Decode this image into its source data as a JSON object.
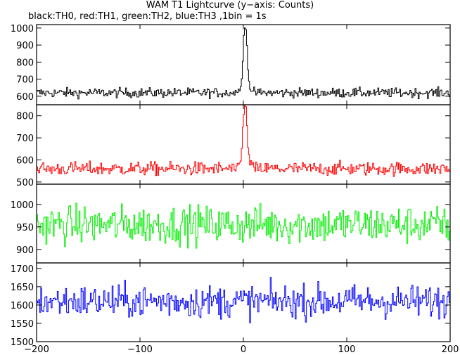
{
  "chart_data": {
    "type": "line",
    "title": "WAM T1 Lightcurve (y−axis: Counts)",
    "subtitle": "black:TH0, red:TH1, green:TH2, blue:TH3 ,1bin = 1s",
    "x_ticks": [
      -200,
      -100,
      0,
      100,
      200
    ],
    "xlim": [
      -200,
      200
    ],
    "x": {
      "start": -200,
      "end": 200,
      "step": 1
    },
    "panels": [
      {
        "color": "#000000",
        "ylim": [
          550,
          1020
        ],
        "yticks": [
          600,
          700,
          800,
          900,
          1000
        ],
        "baseline": 620,
        "noise": 20,
        "peak": [
          [
            -6,
            630
          ],
          [
            -4,
            640
          ],
          [
            -3,
            660
          ],
          [
            -2,
            700
          ],
          [
            -1,
            800
          ],
          [
            0,
            960
          ],
          [
            1,
            1015
          ],
          [
            2,
            990
          ],
          [
            3,
            900
          ],
          [
            4,
            760
          ],
          [
            5,
            680
          ],
          [
            6,
            650
          ],
          [
            8,
            635
          ]
        ]
      },
      {
        "color": "#ff0000",
        "ylim": [
          490,
          850
        ],
        "yticks": [
          500,
          600,
          700,
          800
        ],
        "baseline": 560,
        "noise": 22,
        "peak": [
          [
            -6,
            570
          ],
          [
            -4,
            580
          ],
          [
            -3,
            600
          ],
          [
            -2,
            650
          ],
          [
            -1,
            740
          ],
          [
            0,
            820
          ],
          [
            1,
            850
          ],
          [
            2,
            830
          ],
          [
            3,
            760
          ],
          [
            4,
            660
          ],
          [
            5,
            610
          ],
          [
            6,
            590
          ],
          [
            8,
            575
          ]
        ]
      },
      {
        "color": "#00ee00",
        "ylim": [
          870,
          1045
        ],
        "yticks": [
          900,
          950,
          1000
        ],
        "baseline": 955,
        "noise": 30,
        "peak": []
      },
      {
        "color": "#0000ff",
        "ylim": [
          1500,
          1715
        ],
        "yticks": [
          1500,
          1550,
          1600,
          1650,
          1700
        ],
        "baseline": 1610,
        "noise": 32,
        "peak": []
      }
    ]
  }
}
